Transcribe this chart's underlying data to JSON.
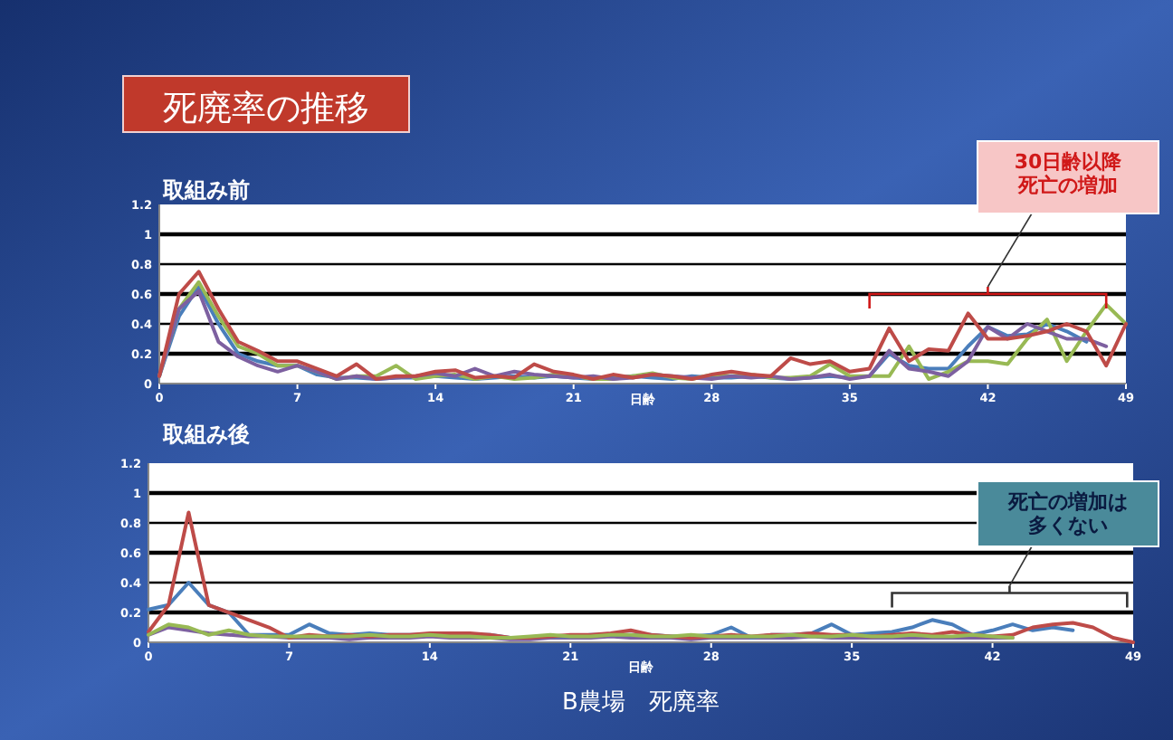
{
  "chart_data": [
    {
      "type": "line",
      "title": "死廃率の推移",
      "subtitle": "取組み前",
      "xlabel": "日齢",
      "x": [
        0,
        1,
        2,
        3,
        4,
        5,
        6,
        7,
        8,
        9,
        10,
        11,
        12,
        13,
        14,
        15,
        16,
        17,
        18,
        19,
        20,
        21,
        22,
        23,
        24,
        25,
        26,
        27,
        28,
        29,
        30,
        31,
        32,
        33,
        34,
        35,
        36,
        37,
        38,
        39,
        40,
        41,
        42,
        43,
        44,
        45,
        46,
        47,
        48,
        49
      ],
      "xlim": [
        0,
        49
      ],
      "xticks": [
        0,
        7,
        14,
        21,
        28,
        35,
        42,
        49
      ],
      "ylim": [
        0,
        1.2
      ],
      "yticks": [
        0,
        0.2,
        0.4,
        0.6,
        0.8,
        1,
        1.2
      ],
      "grid": "y",
      "annotations": [
        "30日齢以降死亡の増加"
      ],
      "series": [
        {
          "color": "#4a7ebb",
          "values": [
            0.05,
            0.45,
            0.65,
            0.4,
            0.2,
            0.15,
            0.12,
            0.12,
            0.06,
            0.04,
            0.04,
            0.03,
            0.04,
            0.04,
            0.05,
            0.04,
            0.03,
            0.04,
            0.05,
            0.04,
            0.05,
            0.04,
            0.03,
            0.04,
            0.05,
            0.04,
            0.03,
            0.05,
            0.04,
            0.04,
            0.05,
            0.04,
            0.03,
            0.04,
            0.05,
            0.04,
            0.05,
            0.2,
            0.12,
            0.1,
            0.1,
            0.25,
            0.38,
            0.32,
            0.33,
            0.4,
            0.35,
            0.28,
            null,
            null
          ]
        },
        {
          "color": "#98b954",
          "values": [
            0.05,
            0.5,
            0.68,
            0.45,
            0.25,
            0.2,
            0.12,
            0.12,
            0.08,
            0.03,
            0.05,
            0.05,
            0.12,
            0.03,
            0.05,
            0.06,
            0.03,
            0.05,
            0.03,
            0.04,
            0.06,
            0.05,
            0.03,
            0.03,
            0.05,
            0.07,
            0.04,
            0.03,
            0.06,
            0.05,
            0.06,
            0.04,
            0.04,
            0.05,
            0.13,
            0.05,
            0.05,
            0.05,
            0.25,
            0.03,
            0.08,
            0.15,
            0.15,
            0.13,
            0.3,
            0.43,
            0.15,
            0.35,
            0.53,
            0.4
          ]
        },
        {
          "color": "#7d60a0",
          "values": [
            0.05,
            0.5,
            0.62,
            0.28,
            0.18,
            0.12,
            0.08,
            0.12,
            0.08,
            0.03,
            0.05,
            0.03,
            0.04,
            0.05,
            0.07,
            0.05,
            0.1,
            0.05,
            0.08,
            0.06,
            0.05,
            0.04,
            0.05,
            0.03,
            0.04,
            0.06,
            0.05,
            0.04,
            0.03,
            0.05,
            0.04,
            0.05,
            0.03,
            0.04,
            0.06,
            0.03,
            0.05,
            0.22,
            0.1,
            0.08,
            0.05,
            0.15,
            0.38,
            0.3,
            0.4,
            0.35,
            0.3,
            0.3,
            0.25,
            null
          ]
        },
        {
          "color": "#be4b48",
          "values": [
            0.05,
            0.6,
            0.75,
            0.5,
            0.28,
            0.22,
            0.15,
            0.15,
            0.1,
            0.05,
            0.13,
            0.03,
            0.05,
            0.05,
            0.08,
            0.09,
            0.04,
            0.05,
            0.04,
            0.13,
            0.08,
            0.06,
            0.03,
            0.06,
            0.04,
            0.06,
            0.05,
            0.03,
            0.06,
            0.08,
            0.06,
            0.05,
            0.17,
            0.13,
            0.15,
            0.08,
            0.1,
            0.37,
            0.15,
            0.23,
            0.22,
            0.47,
            0.3,
            0.3,
            0.32,
            0.35,
            0.4,
            0.35,
            0.12,
            0.4
          ]
        }
      ]
    },
    {
      "type": "line",
      "title": "取組み後",
      "xlabel": "日齢",
      "x": [
        0,
        1,
        2,
        3,
        4,
        5,
        6,
        7,
        8,
        9,
        10,
        11,
        12,
        13,
        14,
        15,
        16,
        17,
        18,
        19,
        20,
        21,
        22,
        23,
        24,
        25,
        26,
        27,
        28,
        29,
        30,
        31,
        32,
        33,
        34,
        35,
        36,
        37,
        38,
        39,
        40,
        41,
        42,
        43,
        44,
        45,
        46,
        47,
        48,
        49
      ],
      "xlim": [
        0,
        49
      ],
      "xticks": [
        0,
        7,
        14,
        21,
        28,
        35,
        42,
        49
      ],
      "ylim": [
        0,
        1.2
      ],
      "yticks": [
        0,
        0.2,
        0.4,
        0.6,
        0.8,
        1,
        1.2
      ],
      "grid": "y",
      "annotations": [
        "死亡の増加は多くない",
        "B農場　死廃率"
      ],
      "series": [
        {
          "color": "#7d60a0",
          "values": [
            0.05,
            0.1,
            0.08,
            0.06,
            0.05,
            0.04,
            0.04,
            0.03,
            0.03,
            0.03,
            0.02,
            0.03,
            0.03,
            0.03,
            0.04,
            0.03,
            0.03,
            0.03,
            0.02,
            0.02,
            0.03,
            0.03,
            0.03,
            0.04,
            0.03,
            0.03,
            0.03,
            0.02,
            0.03,
            0.03,
            0.03,
            0.03,
            0.03,
            0.04,
            0.03,
            0.03,
            0.03,
            0.03,
            0.03,
            0.03,
            0.03,
            0.03,
            0.03,
            0.03,
            null,
            null,
            null,
            null,
            null,
            null
          ]
        },
        {
          "color": "#4a7ebb",
          "values": [
            0.22,
            0.25,
            0.4,
            0.25,
            0.2,
            0.05,
            0.05,
            0.05,
            0.12,
            0.06,
            0.05,
            0.06,
            0.05,
            0.05,
            0.05,
            0.05,
            0.05,
            0.05,
            0.03,
            0.03,
            0.04,
            0.04,
            0.05,
            0.05,
            0.05,
            0.05,
            0.04,
            0.04,
            0.05,
            0.1,
            0.03,
            0.05,
            0.05,
            0.06,
            0.12,
            0.05,
            0.06,
            0.07,
            0.1,
            0.15,
            0.12,
            0.05,
            0.08,
            0.12,
            0.08,
            0.1,
            0.08,
            null,
            null,
            null
          ]
        },
        {
          "color": "#be4b48",
          "values": [
            0.07,
            0.25,
            0.87,
            0.25,
            0.2,
            0.15,
            0.1,
            0.03,
            0.05,
            0.04,
            0.05,
            0.04,
            0.05,
            0.05,
            0.06,
            0.06,
            0.06,
            0.05,
            0.03,
            0.03,
            0.04,
            0.05,
            0.05,
            0.06,
            0.08,
            0.05,
            0.04,
            0.03,
            0.04,
            0.05,
            0.04,
            0.05,
            0.05,
            0.06,
            0.05,
            0.05,
            0.04,
            0.05,
            0.06,
            0.05,
            0.07,
            0.05,
            0.04,
            0.05,
            0.1,
            0.12,
            0.13,
            0.1,
            0.03,
            0.0
          ]
        },
        {
          "color": "#98b954",
          "values": [
            0.05,
            0.12,
            0.1,
            0.05,
            0.08,
            0.05,
            0.04,
            0.04,
            0.04,
            0.04,
            0.04,
            0.05,
            0.04,
            0.04,
            0.05,
            0.04,
            0.04,
            0.03,
            0.03,
            0.04,
            0.05,
            0.04,
            0.04,
            0.05,
            0.05,
            0.04,
            0.04,
            0.05,
            0.04,
            0.04,
            0.04,
            0.04,
            0.05,
            0.04,
            0.04,
            0.05,
            0.04,
            0.04,
            0.05,
            0.04,
            0.04,
            0.05,
            0.04,
            0.03,
            null,
            null,
            null,
            null,
            null,
            null
          ]
        }
      ]
    }
  ]
}
